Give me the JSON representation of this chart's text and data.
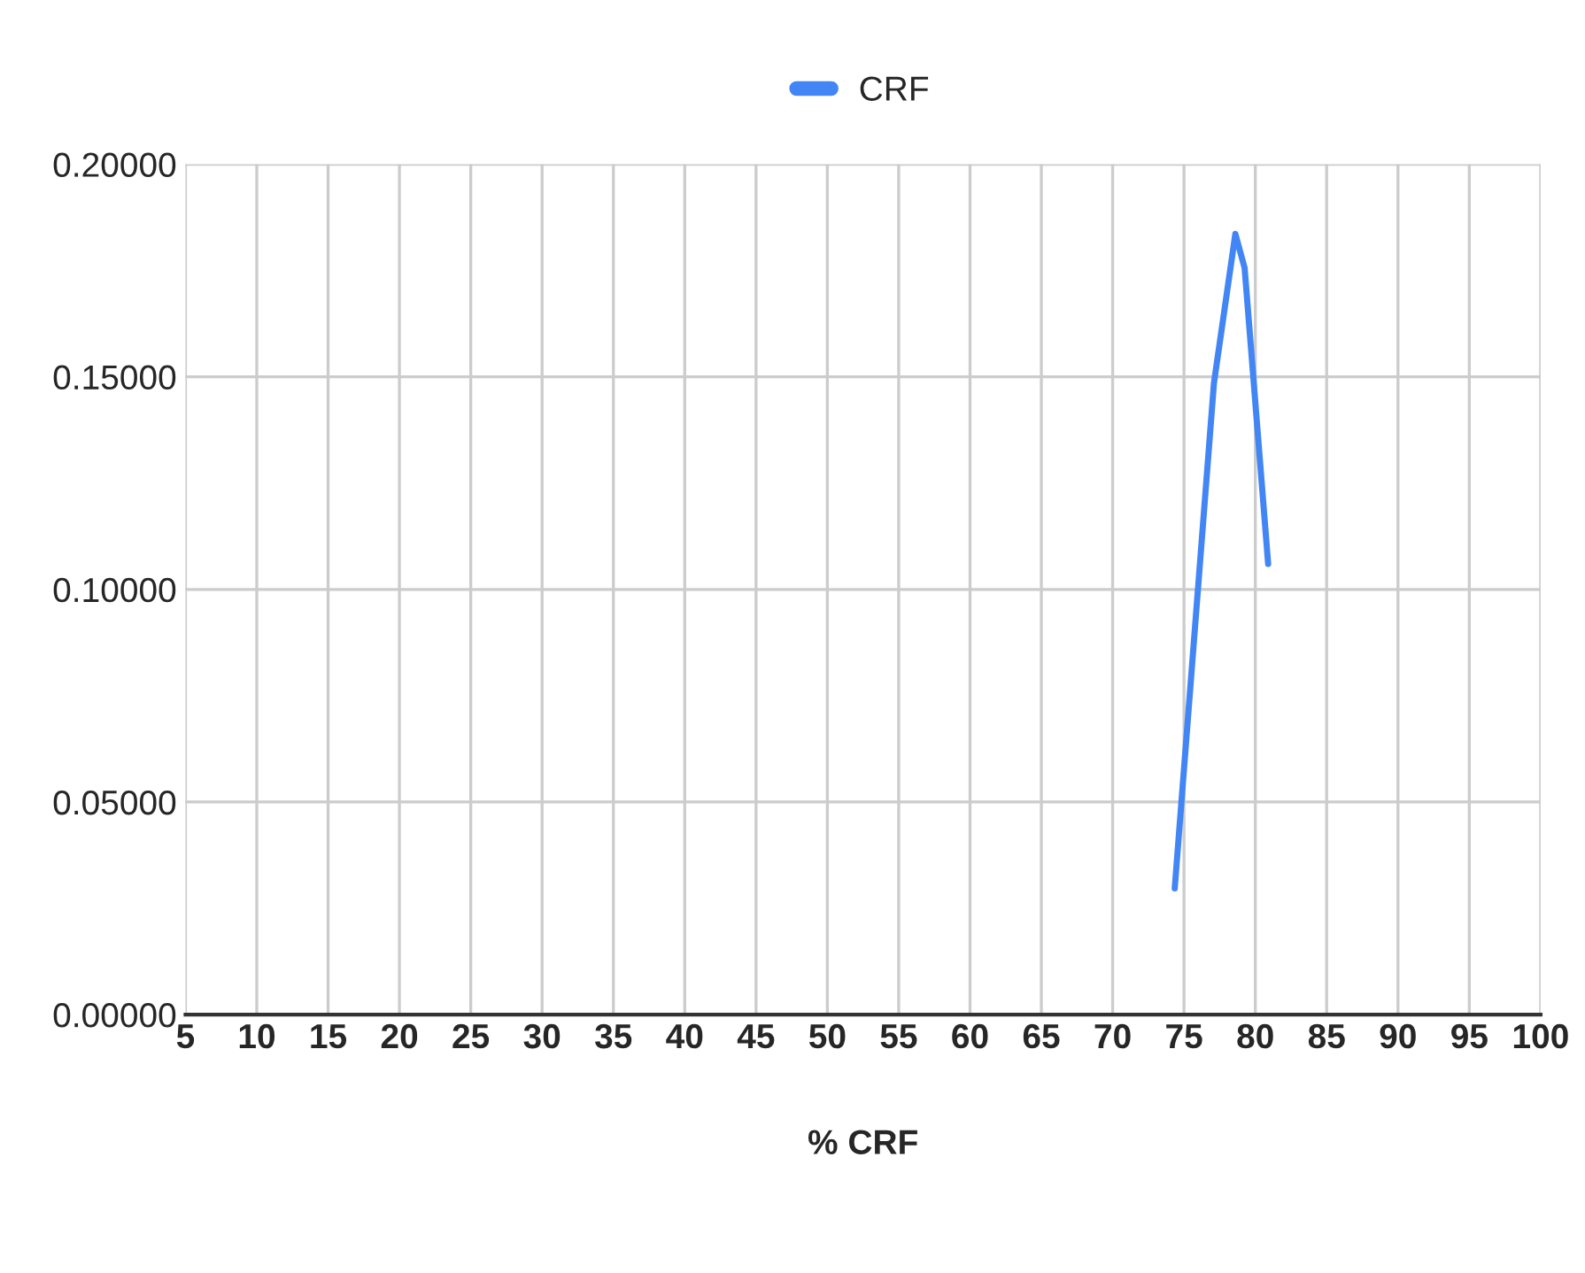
{
  "chart_data": {
    "type": "line",
    "xlabel": "% CRF",
    "series": [
      {
        "name": "CRF",
        "color": "#4285f4",
        "x": [
          74.35,
          77.1,
          78.6,
          79.25,
          80.9
        ],
        "values": [
          0.0297,
          0.1485,
          0.1836,
          0.1756,
          0.106
        ]
      }
    ],
    "xlim": [
      5,
      100
    ],
    "xticks": [
      5,
      10,
      15,
      20,
      25,
      30,
      35,
      40,
      45,
      50,
      55,
      60,
      65,
      70,
      75,
      80,
      85,
      90,
      95,
      100
    ],
    "ylim": [
      0,
      0.2
    ],
    "yticks": [
      {
        "value": 0,
        "label": "0.00000"
      },
      {
        "value": 0.05,
        "label": "0.05000"
      },
      {
        "value": 0.1,
        "label": "0.10000"
      },
      {
        "value": 0.15,
        "label": "0.15000"
      },
      {
        "value": 0.2,
        "label": "0.20000"
      }
    ],
    "grid": true,
    "legend": "top",
    "marker": "none",
    "line_style": "solid"
  }
}
